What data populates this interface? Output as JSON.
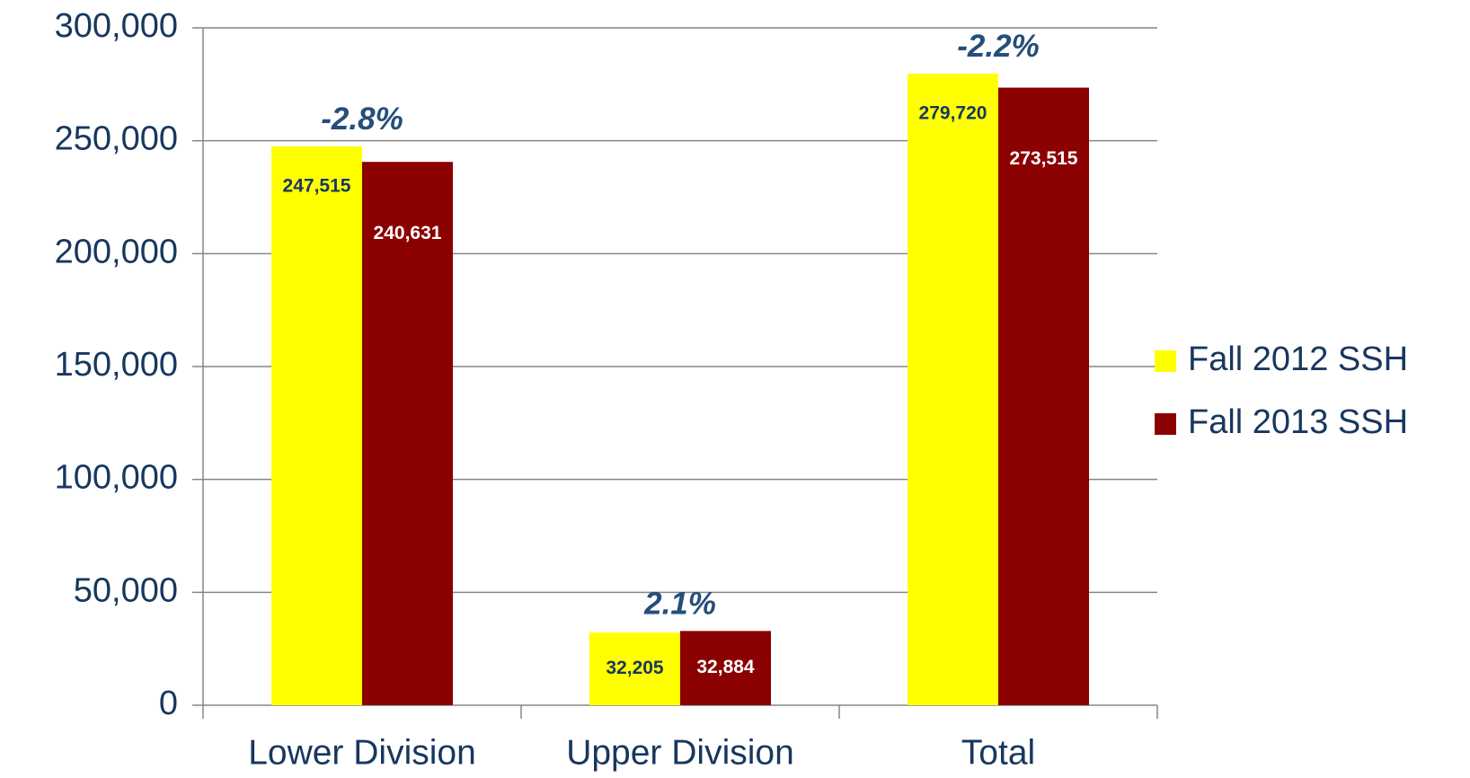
{
  "chart_data": {
    "type": "bar",
    "categories": [
      "Lower Division",
      "Upper Division",
      "Total"
    ],
    "series": [
      {
        "name": "Fall 2012 SSH",
        "color": "#ffff00",
        "values": [
          247515,
          32205,
          279720
        ],
        "value_labels": [
          "247,515",
          "32,205",
          "279,720"
        ]
      },
      {
        "name": "Fall 2013 SSH",
        "color": "#8b0000",
        "values": [
          240631,
          32884,
          273515
        ],
        "value_labels": [
          "240,631",
          "32,884",
          "273,515"
        ]
      }
    ],
    "annotations": [
      "-2.8%",
      "2.1%",
      "-2.2%"
    ],
    "ylim": [
      0,
      300000
    ],
    "yticks": [
      0,
      {
        "value": 50000,
        "label": "50,000"
      },
      {
        "value": 100000,
        "label": "100,000"
      },
      {
        "value": 150000,
        "label": "150,000"
      },
      {
        "value": 200000,
        "label": "200,000"
      },
      {
        "value": 250000,
        "label": "250,000"
      },
      {
        "value": 300000,
        "label": "300,000"
      }
    ],
    "grid": true,
    "legend": "right"
  }
}
